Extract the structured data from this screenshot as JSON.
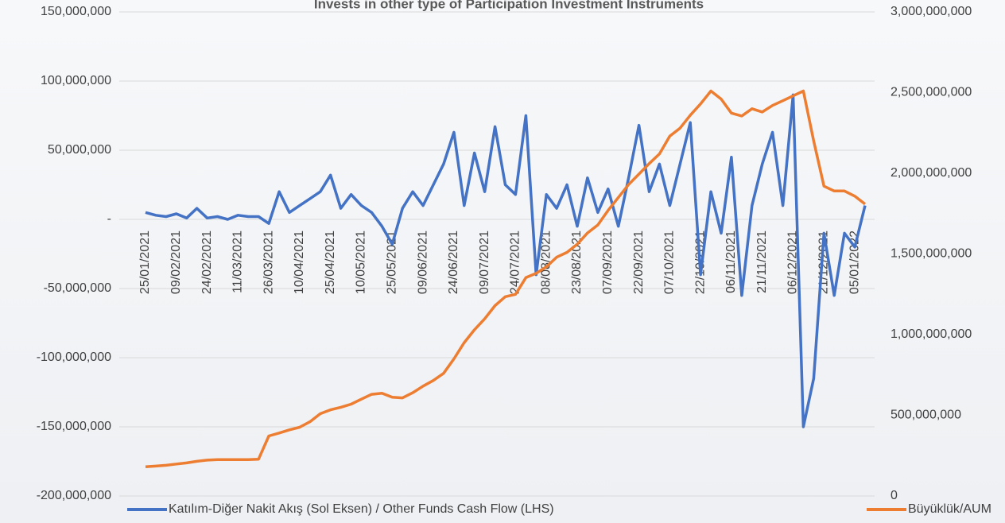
{
  "chart_data": {
    "type": "line",
    "title": "Invests in other type of Participation Investment Instruments",
    "categories": [
      "25/01/2021",
      null,
      null,
      "09/02/2021",
      null,
      null,
      "24/02/2021",
      null,
      null,
      "11/03/2021",
      null,
      null,
      "26/03/2021",
      null,
      null,
      "10/04/2021",
      null,
      null,
      "25/04/2021",
      null,
      null,
      "10/05/2021",
      null,
      null,
      "25/05/2021",
      null,
      null,
      "09/06/2021",
      null,
      null,
      "24/06/2021",
      null,
      null,
      "09/07/2021",
      null,
      null,
      "24/07/2021",
      null,
      null,
      "08/08/2021",
      null,
      null,
      "23/08/2021",
      null,
      null,
      "07/09/2021",
      null,
      null,
      "22/09/2021",
      null,
      null,
      "07/10/2021",
      null,
      null,
      "22/10/2021",
      null,
      null,
      "06/11/2021",
      null,
      null,
      "21/11/2021",
      null,
      null,
      "06/12/2021",
      null,
      null,
      "21/12/2021",
      null,
      null,
      "05/01/2022",
      null
    ],
    "series": [
      {
        "name": "Katılım-Diğer Nakit Akış (Sol Eksen) / Other Funds Cash Flow (LHS)",
        "color": "#4472c4",
        "values": [
          5000000,
          3000000,
          2000000,
          4000000,
          1000000,
          8000000,
          1000000,
          2000000,
          0,
          3000000,
          2000000,
          2000000,
          -3000000,
          20000000,
          5000000,
          10000000,
          15000000,
          20000000,
          32000000,
          8000000,
          18000000,
          10000000,
          5000000,
          -5000000,
          -18000000,
          8000000,
          20000000,
          10000000,
          25000000,
          40000000,
          63000000,
          10000000,
          48000000,
          20000000,
          67000000,
          25000000,
          18000000,
          75000000,
          -40000000,
          18000000,
          8000000,
          25000000,
          -5000000,
          30000000,
          5000000,
          22000000,
          -5000000,
          30000000,
          68000000,
          20000000,
          40000000,
          10000000,
          40000000,
          70000000,
          -40000000,
          20000000,
          -10000000,
          45000000,
          -55000000,
          10000000,
          40000000,
          63000000,
          10000000,
          90000000,
          -150000000,
          -115000000,
          -10000000,
          -55000000,
          -10000000,
          -20000000,
          10000000
        ]
      },
      {
        "name": "Büyüklük/AUM",
        "color": "#ed7d31",
        "axis": "y2",
        "values": [
          181000000,
          185000000,
          190000000,
          198000000,
          205000000,
          215000000,
          222000000,
          225000000,
          225000000,
          225000000,
          225000000,
          228000000,
          372000000,
          390000000,
          410000000,
          426000000,
          460000000,
          510000000,
          534000000,
          550000000,
          569000000,
          600000000,
          630000000,
          637000000,
          612000000,
          608000000,
          640000000,
          681000000,
          716000000,
          760000000,
          850000000,
          950000000,
          1030000000,
          1098000000,
          1180000000,
          1235000000,
          1250000000,
          1353000000,
          1380000000,
          1420000000,
          1480000000,
          1510000000,
          1560000000,
          1630000000,
          1680000000,
          1770000000,
          1850000000,
          1930000000,
          1995000000,
          2060000000,
          2120000000,
          2230000000,
          2280000000,
          2360000000,
          2430000000,
          2510000000,
          2460000000,
          2373000000,
          2355000000,
          2400000000,
          2380000000,
          2420000000,
          2450000000,
          2480000000,
          2510000000,
          2200000000,
          1920000000,
          1890000000,
          1890000000,
          1858000000,
          1809000000
        ]
      }
    ],
    "ylim": [
      -200000000,
      150000000
    ],
    "yticks": [
      {
        "value": -200000000,
        "label": "-200,000,000"
      },
      {
        "value": -150000000,
        "label": "-150,000,000"
      },
      {
        "value": -100000000,
        "label": "-100,000,000"
      },
      {
        "value": -50000000,
        "label": "-50,000,000"
      },
      {
        "value": 0,
        "label": "-"
      },
      {
        "value": 50000000,
        "label": "50,000,000"
      },
      {
        "value": 100000000,
        "label": "100,000,000"
      },
      {
        "value": 150000000,
        "label": "150,000,000"
      }
    ],
    "y2lim": [
      0,
      3000000000
    ],
    "y2ticks": [
      0,
      {
        "value": 500000000,
        "label": "500,000,000"
      },
      {
        "value": 1000000000,
        "label": "1,000,000,000"
      },
      {
        "value": 1500000000,
        "label": "1,500,000,000"
      },
      {
        "value": 2000000000,
        "label": "2,000,000,000"
      },
      {
        "value": 2500000000,
        "label": "2,500,000,000"
      },
      {
        "value": 3000000000,
        "label": "3,000,000,000"
      }
    ],
    "grid": true,
    "legend": "bottom"
  }
}
